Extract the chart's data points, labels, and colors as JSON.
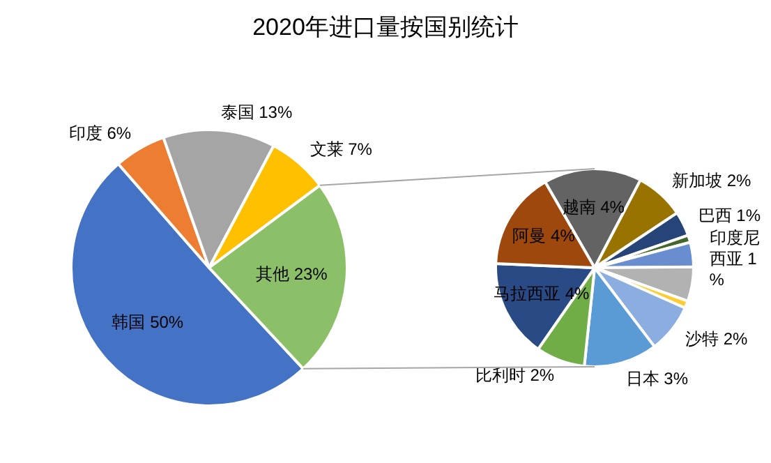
{
  "chart_data": [
    {
      "type": "pie",
      "title": "2020年进口量按国别统计",
      "categories": [
        "韩国",
        "印度",
        "泰国",
        "文莱",
        "其他"
      ],
      "values": [
        50,
        6,
        13,
        7,
        23
      ],
      "value_labels": [
        "50%",
        "6%",
        "13%",
        "7%",
        "23%"
      ],
      "colors": [
        "#4472c4",
        "#ed7d31",
        "#a5a5a5",
        "#ffc000",
        "#8cc068"
      ]
    },
    {
      "type": "pie",
      "categories": [
        "越南",
        "新加坡",
        "巴西",
        null,
        "印度尼西亚",
        null,
        null,
        "沙特",
        "日本",
        "比利时",
        "马拉西亚",
        "阿曼"
      ],
      "values": [
        4,
        2,
        1,
        0.3,
        1,
        1.4,
        0.3,
        2,
        3,
        2,
        4,
        4
      ],
      "value_labels": [
        "4%",
        "2%",
        "1%",
        null,
        "1%",
        null,
        null,
        "2%",
        "3%",
        "2%",
        "4%",
        "4%"
      ],
      "colors": [
        "#636363",
        "#997300",
        "#264478",
        "#43682b",
        "#698ed0",
        "#b2b2b2",
        "#ffcd33",
        "#8cade0",
        "#5b9bd5",
        "#70ad47",
        "#2a4a85",
        "#9e480e"
      ]
    }
  ]
}
